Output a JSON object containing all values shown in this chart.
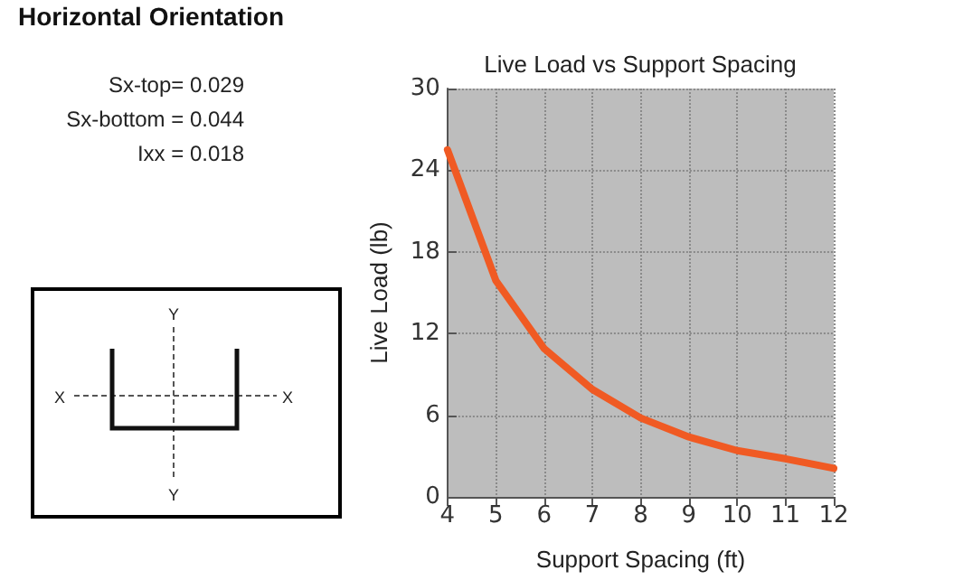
{
  "chart_data": {
    "type": "line",
    "title": "Live Load vs Support Spacing",
    "xlabel": "Support Spacing (ft)",
    "ylabel": "Live Load (lb)",
    "annotations": [
      "Horizontal Orientation",
      "Sx-top= 0.029",
      "Sx-bottom = 0.044",
      "Ixx = 0.018",
      "Y",
      "X",
      "X",
      "Y"
    ],
    "x": [
      4,
      5,
      6,
      7,
      8,
      9,
      10,
      11,
      12
    ],
    "series": [
      {
        "color": "#f05a23",
        "values": [
          25.5,
          15.9,
          10.9,
          7.9,
          5.8,
          4.4,
          3.4,
          2.8,
          2.1
        ]
      }
    ],
    "xlim": [
      4,
      12
    ],
    "xticks": [
      4,
      5,
      6,
      7,
      8,
      9,
      10,
      11,
      12
    ],
    "ylim": [
      0,
      30
    ],
    "yticks": [
      0,
      6,
      12,
      18,
      24,
      30
    ],
    "grid": true,
    "marker": "none",
    "line_style": "solid"
  }
}
